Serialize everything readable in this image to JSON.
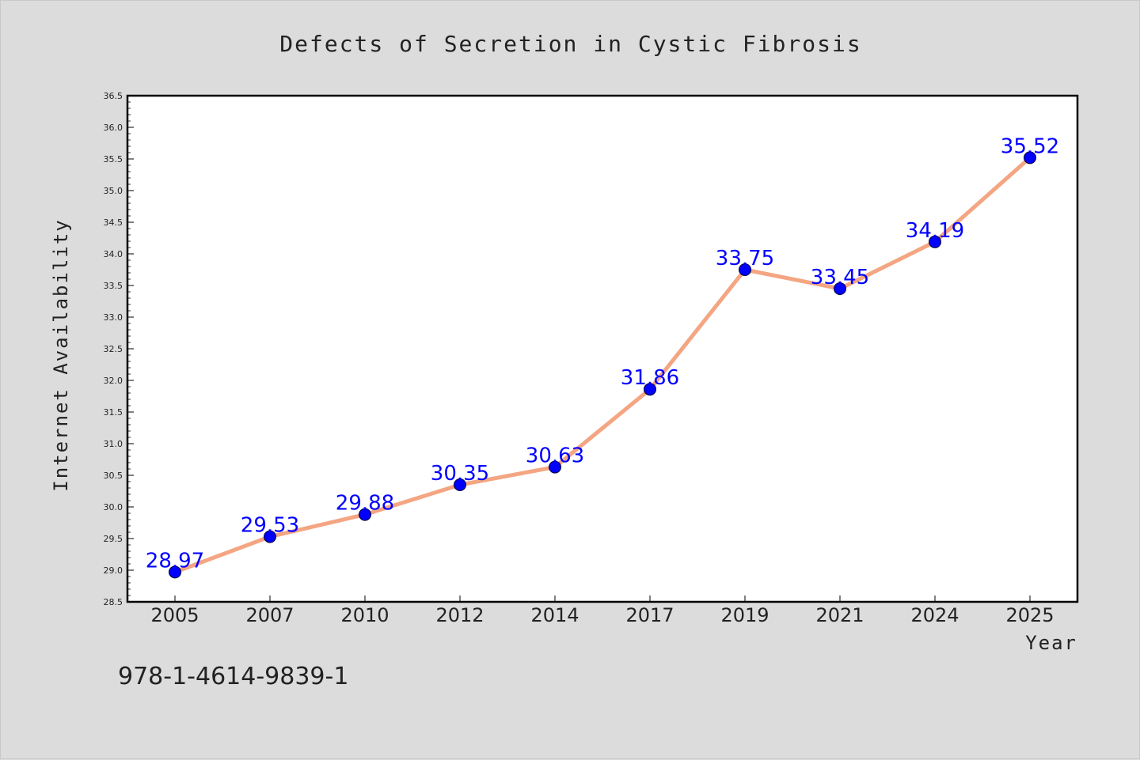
{
  "chart_data": {
    "type": "line",
    "title": "Defects of Secretion in Cystic Fibrosis",
    "xlabel": "Year",
    "ylabel": "Internet Availability",
    "categories": [
      "2005",
      "2007",
      "2010",
      "2012",
      "2014",
      "2017",
      "2019",
      "2021",
      "2024",
      "2025"
    ],
    "values": [
      28.97,
      29.53,
      29.88,
      30.35,
      30.63,
      31.86,
      33.75,
      33.45,
      34.19,
      35.52
    ],
    "data_labels": [
      "28.97",
      "29.53",
      "29.88",
      "30.35",
      "30.63",
      "31.86",
      "33.75",
      "33.45",
      "34.19",
      "35.52"
    ],
    "ylim": [
      28.5,
      36.5
    ],
    "yticks": [
      "28.5",
      "29.0",
      "29.5",
      "30.0",
      "30.5",
      "31.0",
      "31.5",
      "32.0",
      "32.5",
      "33.0",
      "33.5",
      "34.0",
      "34.5",
      "35.0",
      "35.5",
      "36.0",
      "36.5"
    ],
    "grid": false,
    "legend": "none",
    "line_color": "#f4a582",
    "marker_color": "#0000ff",
    "label_color": "#0000ff",
    "background_color": "#dcdcdc",
    "plot_background_color": "#ffffff"
  },
  "footnote": "978-1-4614-9839-1"
}
